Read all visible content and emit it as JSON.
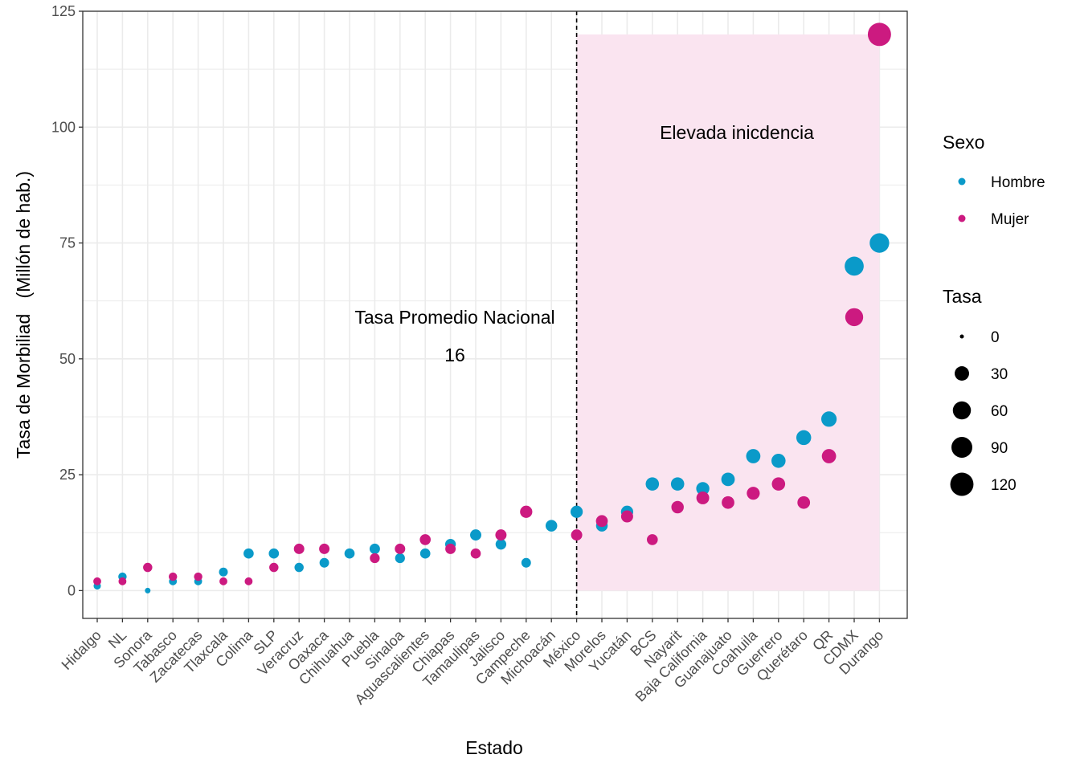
{
  "colors": {
    "hombre": "#0a9ac9",
    "mujer": "#cc1a80",
    "highlight": "#fae4f0",
    "grid": "#ebebeb",
    "axis_text": "#4d4d4d"
  },
  "chart_data": {
    "type": "scatter",
    "xlabel": "Estado",
    "ylabel": "Tasa de Morbiliad   (Millón de hab.)",
    "ylim": [
      -6,
      125
    ],
    "yticks": [
      0,
      25,
      50,
      75,
      100,
      125
    ],
    "categories": [
      "Hidalgo",
      "NL",
      "Sonora",
      "Tabasco",
      "Zacatecas",
      "Tlaxcala",
      "Colima",
      "SLP",
      "Veracruz",
      "Oaxaca",
      "Chihuahua",
      "Puebla",
      "Sinaloa",
      "Aguascalientes",
      "Chiapas",
      "Tamaulipas",
      "Jalisco",
      "Campeche",
      "Michoacán",
      "México",
      "Morelos",
      "Yucatán",
      "BCS",
      "Nayarit",
      "Baja California",
      "Guanajuato",
      "Coahuila",
      "Guerrero",
      "Querétaro",
      "QR",
      "CDMX",
      "Durango"
    ],
    "series": [
      {
        "name": "Hombre",
        "values": [
          1,
          3,
          0,
          2,
          2,
          4,
          8,
          8,
          5,
          6,
          8,
          9,
          7,
          8,
          10,
          12,
          10,
          6,
          14,
          17,
          14,
          17,
          23,
          23,
          22,
          24,
          29,
          28,
          33,
          37,
          70,
          75
        ]
      },
      {
        "name": "Mujer",
        "values": [
          2,
          2,
          5,
          3,
          3,
          2,
          2,
          5,
          9,
          9,
          null,
          7,
          9,
          11,
          9,
          8,
          12,
          17,
          null,
          12,
          15,
          16,
          11,
          18,
          20,
          19,
          21,
          23,
          19,
          29,
          59,
          120
        ]
      }
    ],
    "vline": {
      "category": "México",
      "style": "dashed"
    },
    "highlight_region": {
      "from_category": "México",
      "to_category": "Durango",
      "y_from": 0,
      "y_to": 120
    },
    "annotations": {
      "nacional_label": "Tasa Promedio Nacional",
      "nacional_value": "16",
      "elevada_label": "Elevada inicdencia"
    },
    "legend": {
      "placement": "right",
      "color_title": "Sexo",
      "color_items": [
        "Hombre",
        "Mujer"
      ],
      "size_title": "Tasa",
      "size_items": [
        "0",
        "30",
        "60",
        "90",
        "120"
      ]
    },
    "grid": true
  }
}
